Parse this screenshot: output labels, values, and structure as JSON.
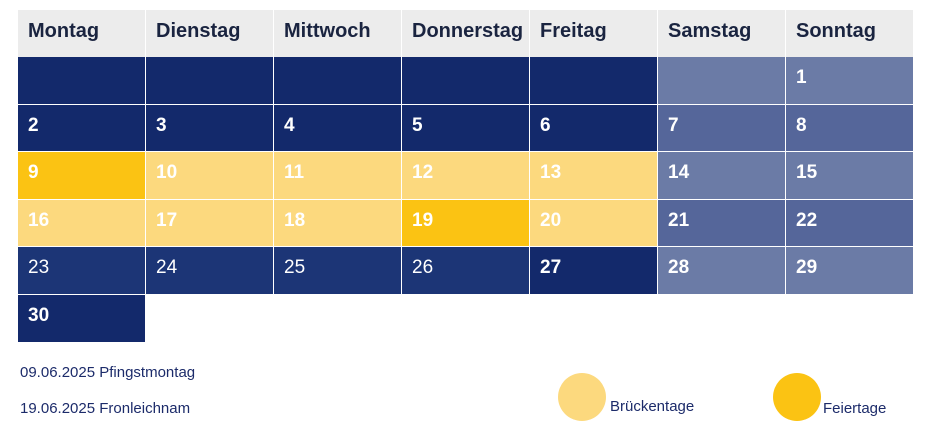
{
  "colors": {
    "header_bg": "#ececec",
    "header_text": "#1a2440",
    "weekday": "#13296b",
    "weekday_alt": "#1c3576",
    "weekend": "#6b7ba6",
    "weekend_dark": "#55669a",
    "bridge_day": "#fcd97e",
    "holiday": "#fbc313",
    "day_text": "#ffffff",
    "legend_text": "#1c2b6a"
  },
  "calendar": {
    "weekdays": [
      "Montag",
      "Dienstag",
      "Mittwoch",
      "Donnerstag",
      "Freitag",
      "Samstag",
      "Sonntag"
    ],
    "weeks": [
      [
        {
          "day": "",
          "type": "weekday"
        },
        {
          "day": "",
          "type": "weekday"
        },
        {
          "day": "",
          "type": "weekday"
        },
        {
          "day": "",
          "type": "weekday"
        },
        {
          "day": "",
          "type": "weekday"
        },
        {
          "day": "",
          "type": "weekend"
        },
        {
          "day": "1",
          "type": "weekend"
        }
      ],
      [
        {
          "day": "2",
          "type": "weekday"
        },
        {
          "day": "3",
          "type": "weekday"
        },
        {
          "day": "4",
          "type": "weekday"
        },
        {
          "day": "5",
          "type": "weekday"
        },
        {
          "day": "6",
          "type": "weekday"
        },
        {
          "day": "7",
          "type": "weekend_dark"
        },
        {
          "day": "8",
          "type": "weekend_dark"
        }
      ],
      [
        {
          "day": "9",
          "type": "holiday"
        },
        {
          "day": "10",
          "type": "bridge_day"
        },
        {
          "day": "11",
          "type": "bridge_day"
        },
        {
          "day": "12",
          "type": "bridge_day"
        },
        {
          "day": "13",
          "type": "bridge_day"
        },
        {
          "day": "14",
          "type": "weekend"
        },
        {
          "day": "15",
          "type": "weekend"
        }
      ],
      [
        {
          "day": "16",
          "type": "bridge_day"
        },
        {
          "day": "17",
          "type": "bridge_day"
        },
        {
          "day": "18",
          "type": "bridge_day"
        },
        {
          "day": "19",
          "type": "holiday"
        },
        {
          "day": "20",
          "type": "bridge_day"
        },
        {
          "day": "21",
          "type": "weekend_dark"
        },
        {
          "day": "22",
          "type": "weekend_dark"
        }
      ],
      [
        {
          "day": "23",
          "type": "weekday_alt",
          "light": true
        },
        {
          "day": "24",
          "type": "weekday_alt",
          "light": true
        },
        {
          "day": "25",
          "type": "weekday_alt",
          "light": true
        },
        {
          "day": "26",
          "type": "weekday_alt",
          "light": true
        },
        {
          "day": "27",
          "type": "weekday"
        },
        {
          "day": "28",
          "type": "weekend"
        },
        {
          "day": "29",
          "type": "weekend"
        }
      ],
      [
        {
          "day": "30",
          "type": "weekday"
        }
      ]
    ]
  },
  "notes": {
    "holiday_1": "09.06.2025 Pfingstmontag",
    "holiday_2": "19.06.2025 Fronleichnam"
  },
  "legend": {
    "bridge_label": "Brückentage",
    "holiday_label": "Feiertage"
  }
}
